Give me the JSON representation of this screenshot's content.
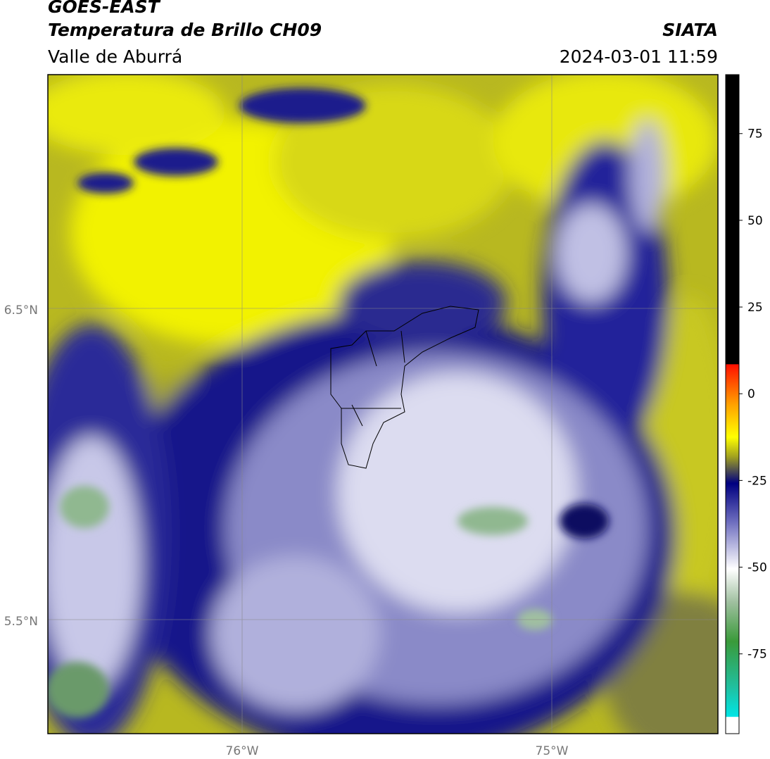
{
  "header": {
    "network": "GOES-EAST",
    "product": "Temperatura de Brillo CH09",
    "region": "Valle de Aburrá",
    "source": "SIATA",
    "datetime": "2024-03-01 11:59"
  },
  "map": {
    "lat_labels": [
      "6.5°N",
      "5.5°N"
    ],
    "lon_labels": [
      "76°W",
      "75°W"
    ]
  },
  "colorbar": {
    "lim": [
      -98,
      92
    ],
    "ticks": [
      75,
      50,
      25,
      0,
      -25,
      -50,
      -75
    ]
  }
}
